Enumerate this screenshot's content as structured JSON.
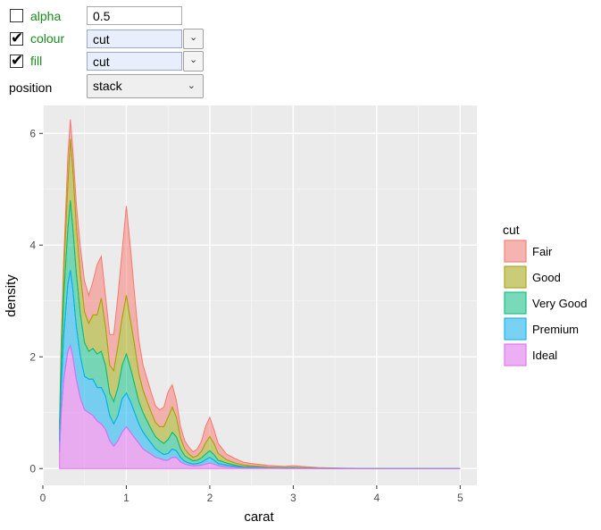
{
  "controls": {
    "alpha": {
      "label": "alpha",
      "checked": false,
      "value": "0.5"
    },
    "colour": {
      "label": "colour",
      "checked": true,
      "value": "cut"
    },
    "fill": {
      "label": "fill",
      "checked": true,
      "value": "cut"
    },
    "position": {
      "label": "position",
      "value": "stack"
    },
    "check_glyph": "✔"
  },
  "chart_data": {
    "type": "area",
    "stacked": true,
    "xlabel": "carat",
    "ylabel": "density",
    "xlim": [
      0,
      5.2
    ],
    "ylim": [
      -0.3,
      6.5
    ],
    "xticks": [
      0,
      1,
      2,
      3,
      4,
      5
    ],
    "yticks": [
      0,
      2,
      4,
      6
    ],
    "grid": true,
    "legend_position": "right",
    "legend_title": "cut",
    "x": [
      0.2,
      0.22,
      0.25,
      0.3,
      0.33,
      0.36,
      0.4,
      0.45,
      0.5,
      0.55,
      0.6,
      0.65,
      0.7,
      0.75,
      0.8,
      0.85,
      0.9,
      0.95,
      1.0,
      1.05,
      1.1,
      1.15,
      1.2,
      1.25,
      1.3,
      1.35,
      1.4,
      1.45,
      1.5,
      1.55,
      1.6,
      1.65,
      1.7,
      1.75,
      1.8,
      1.85,
      1.9,
      1.95,
      2.0,
      2.05,
      2.1,
      2.2,
      2.3,
      2.4,
      2.5,
      2.7,
      2.9,
      3.0,
      3.1,
      3.3,
      3.5,
      4.0,
      4.5,
      5.0
    ],
    "series": [
      {
        "name": "Ideal",
        "color": "#e76bf3",
        "values": [
          0.3,
          1.0,
          1.6,
          2.1,
          2.2,
          2.0,
          1.6,
          1.25,
          1.05,
          1.0,
          0.95,
          0.85,
          0.8,
          0.7,
          0.5,
          0.4,
          0.5,
          0.65,
          0.75,
          0.65,
          0.55,
          0.45,
          0.35,
          0.3,
          0.25,
          0.2,
          0.18,
          0.15,
          0.15,
          0.2,
          0.2,
          0.12,
          0.08,
          0.06,
          0.05,
          0.05,
          0.06,
          0.08,
          0.1,
          0.08,
          0.05,
          0.03,
          0.02,
          0.01,
          0.01,
          0.005,
          0.003,
          0.003,
          0.002,
          0.001,
          0.001,
          0,
          0,
          0
        ]
      },
      {
        "name": "Premium",
        "color": "#00b0f6",
        "values": [
          0.2,
          0.5,
          0.8,
          1.2,
          1.35,
          1.2,
          0.95,
          0.75,
          0.6,
          0.6,
          0.65,
          0.6,
          0.65,
          0.6,
          0.45,
          0.4,
          0.45,
          0.6,
          0.6,
          0.55,
          0.45,
          0.35,
          0.3,
          0.25,
          0.2,
          0.15,
          0.12,
          0.1,
          0.12,
          0.15,
          0.12,
          0.08,
          0.05,
          0.04,
          0.03,
          0.04,
          0.05,
          0.08,
          0.1,
          0.07,
          0.04,
          0.03,
          0.02,
          0.01,
          0.01,
          0.005,
          0.003,
          0.004,
          0.003,
          0.001,
          0.001,
          0,
          0,
          0
        ]
      },
      {
        "name": "Very Good",
        "color": "#00bf7d",
        "values": [
          0.2,
          0.45,
          0.7,
          1.0,
          1.25,
          1.1,
          0.95,
          0.75,
          0.6,
          0.5,
          0.55,
          0.6,
          0.65,
          0.55,
          0.4,
          0.4,
          0.5,
          0.6,
          0.7,
          0.6,
          0.5,
          0.4,
          0.35,
          0.3,
          0.25,
          0.22,
          0.2,
          0.2,
          0.25,
          0.3,
          0.25,
          0.15,
          0.1,
          0.08,
          0.06,
          0.06,
          0.08,
          0.1,
          0.12,
          0.1,
          0.06,
          0.04,
          0.02,
          0.015,
          0.01,
          0.006,
          0.004,
          0.005,
          0.004,
          0.002,
          0.001,
          0,
          0,
          0
        ]
      },
      {
        "name": "Good",
        "color": "#a3a500",
        "values": [
          0.1,
          0.25,
          0.45,
          0.8,
          1.1,
          1.05,
          0.85,
          0.7,
          0.55,
          0.5,
          0.6,
          0.7,
          0.95,
          0.7,
          0.5,
          0.55,
          0.75,
          0.85,
          1.05,
          0.85,
          0.7,
          0.5,
          0.4,
          0.35,
          0.3,
          0.25,
          0.25,
          0.3,
          0.4,
          0.45,
          0.35,
          0.2,
          0.12,
          0.08,
          0.06,
          0.08,
          0.12,
          0.2,
          0.25,
          0.2,
          0.12,
          0.06,
          0.04,
          0.03,
          0.02,
          0.01,
          0.008,
          0.01,
          0.008,
          0.004,
          0.002,
          0,
          0,
          0
        ]
      },
      {
        "name": "Fair",
        "color": "#f8766d",
        "values": [
          0.05,
          0.1,
          0.2,
          0.5,
          0.35,
          0.35,
          0.4,
          0.5,
          0.55,
          0.5,
          0.6,
          0.9,
          0.75,
          0.55,
          0.55,
          0.65,
          0.9,
          1.2,
          1.6,
          1.3,
          0.9,
          0.6,
          0.45,
          0.4,
          0.35,
          0.3,
          0.3,
          0.35,
          0.45,
          0.4,
          0.3,
          0.2,
          0.15,
          0.12,
          0.1,
          0.12,
          0.18,
          0.3,
          0.35,
          0.25,
          0.18,
          0.1,
          0.08,
          0.05,
          0.04,
          0.03,
          0.02,
          0.03,
          0.02,
          0.01,
          0.005,
          0,
          0,
          0
        ]
      }
    ],
    "legend": [
      "Fair",
      "Good",
      "Very Good",
      "Premium",
      "Ideal"
    ]
  }
}
